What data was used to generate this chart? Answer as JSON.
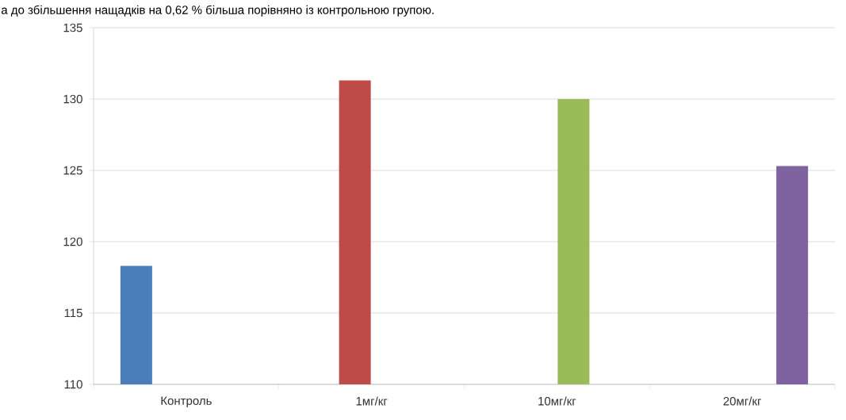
{
  "chart_data": {
    "type": "bar",
    "categories": [
      "Контроль",
      "1мг/кг",
      "10мг/кг",
      "20мг/кг"
    ],
    "series": [
      {
        "color": "#4a7ebb",
        "values": [
          118.3,
          null,
          null,
          null
        ]
      },
      {
        "color": "#be4b48",
        "values": [
          null,
          131.3,
          null,
          null
        ]
      },
      {
        "color": "#9bbb59",
        "values": [
          null,
          null,
          130.0,
          null
        ]
      },
      {
        "color": "#7f63a1",
        "values": [
          null,
          null,
          null,
          125.3
        ]
      }
    ],
    "ylim": [
      110,
      135
    ],
    "yticks": [
      110,
      115,
      120,
      125,
      130,
      135
    ],
    "grid": "y",
    "annotations": [
      "а до збільшення нащадків на 0,62 % більша порівняно із контрольною групою."
    ]
  }
}
